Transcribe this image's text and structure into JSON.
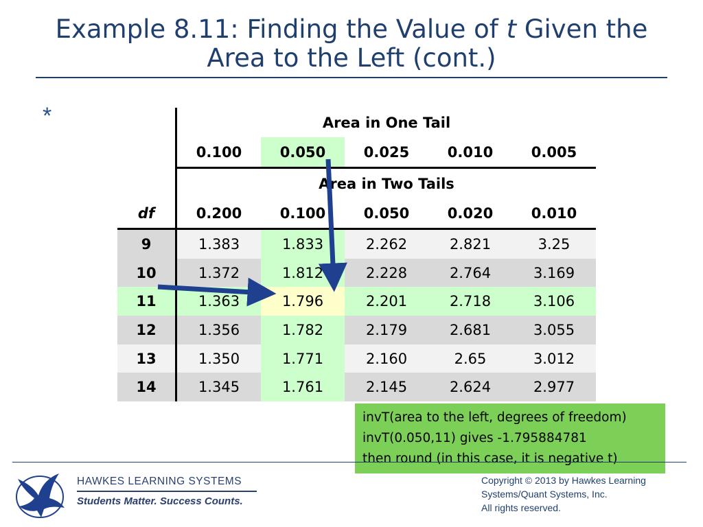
{
  "title": {
    "line1_prefix": "Example 8.11: Finding the Value of ",
    "line1_italic": "t",
    "line1_suffix": " Given the",
    "line2": "Area to the Left (cont.)"
  },
  "bullet": "*",
  "table": {
    "one_tail_header": "Area in One Tail",
    "one_tail_values": [
      "0.100",
      "0.050",
      "0.025",
      "0.010",
      "0.005"
    ],
    "two_tail_header": "Area in Two Tails",
    "df_header": "df",
    "two_tail_values": [
      "0.200",
      "0.100",
      "0.050",
      "0.020",
      "0.010"
    ],
    "rows": [
      {
        "df": "9",
        "values": [
          "1.383",
          "1.833",
          "2.262",
          "2.821",
          "3.25"
        ]
      },
      {
        "df": "10",
        "values": [
          "1.372",
          "1.812",
          "2.228",
          "2.764",
          "3.169"
        ]
      },
      {
        "df": "11",
        "values": [
          "1.363",
          "1.796",
          "2.201",
          "2.718",
          "3.106"
        ]
      },
      {
        "df": "12",
        "values": [
          "1.356",
          "1.782",
          "2.179",
          "2.681",
          "3.055"
        ]
      },
      {
        "df": "13",
        "values": [
          "1.350",
          "1.771",
          "2.160",
          "2.65",
          "3.012"
        ]
      },
      {
        "df": "14",
        "values": [
          "1.345",
          "1.761",
          "2.145",
          "2.624",
          "2.977"
        ]
      }
    ]
  },
  "info": {
    "line1": "invT(area to the left, degrees of freedom)",
    "line2": "invT(0.050,11) gives -1.795884781",
    "line3": "then round (in this case, it is negative t)"
  },
  "footer": {
    "company": "HAWKES LEARNING SYSTEMS",
    "tagline": "Students Matter. Success Counts.",
    "copyright_line1": "Copyright © 2013 by Hawkes Learning",
    "copyright_line2": "Systems/Quant Systems, Inc.",
    "copyright_line3": "All rights reserved."
  },
  "colors": {
    "title": "#1f3f6e",
    "highlight_green": "#ccffcc",
    "highlight_yellow": "#ffffcc",
    "arrow": "#1f3f8f",
    "info_box": "#7ccf57"
  }
}
